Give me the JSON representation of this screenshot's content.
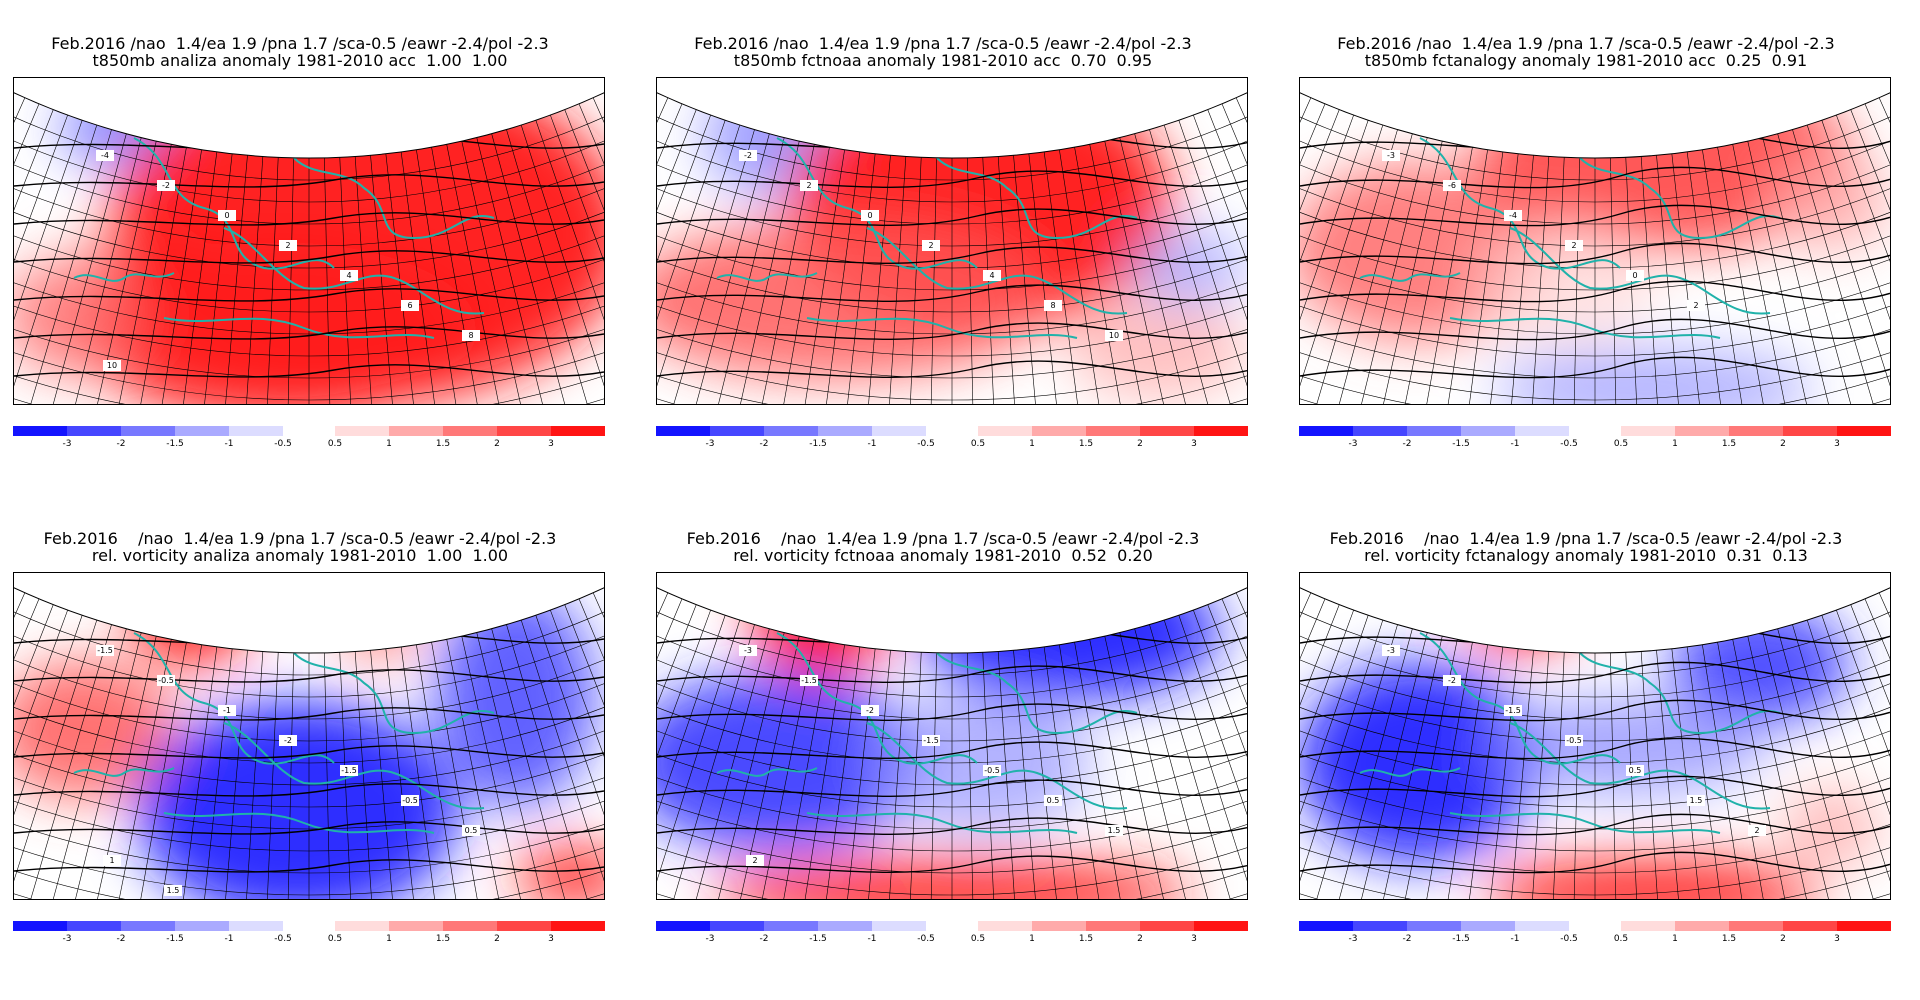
{
  "panels": [
    {
      "line1": "Feb.2016 /nao  1.4/ea 1.9 /pna 1.7 /sca-0.5 /eawr -2.4/pol -2.3",
      "line2": "t850mb analiza anomaly 1981-2010 acc  1.00  1.00",
      "pattern": "warm",
      "contour_labels": [
        "-4",
        "-2",
        "0",
        "2",
        "4",
        "6",
        "8",
        "10"
      ]
    },
    {
      "line1": "Feb.2016 /nao  1.4/ea 1.9 /pna 1.7 /sca-0.5 /eawr -2.4/pol -2.3",
      "line2": "t850mb fctnoaa anomaly 1981-2010 acc  0.70  0.95",
      "pattern": "warm2",
      "contour_labels": [
        "-2",
        "2",
        "0",
        "2",
        "4",
        "8",
        "10"
      ]
    },
    {
      "line1": "Feb.2016 /nao  1.4/ea 1.9 /pna 1.7 /sca-0.5 /eawr -2.4/pol -2.3",
      "line2": "t850mb fctanalogy anomaly 1981-2010 acc  0.25  0.91",
      "pattern": "mixed",
      "contour_labels": [
        "-3",
        "-6",
        "-4",
        "2",
        "0",
        "2"
      ]
    },
    {
      "line1": "Feb.2016    /nao  1.4/ea 1.9 /pna 1.7 /sca-0.5 /eawr -2.4/pol -2.3",
      "line2": "rel. vorticity analiza anomaly 1981-2010  1.00  1.00",
      "pattern": "vort1",
      "contour_labels": [
        "-1.5",
        "-0.5",
        "-1",
        "-2",
        "-1.5",
        "-0.5",
        "0.5",
        "1",
        "1.5"
      ]
    },
    {
      "line1": "Feb.2016    /nao  1.4/ea 1.9 /pna 1.7 /sca-0.5 /eawr -2.4/pol -2.3",
      "line2": "rel. vorticity fctnoaa anomaly 1981-2010  0.52  0.20",
      "pattern": "vort2",
      "contour_labels": [
        "-3",
        "-1.5",
        "-2",
        "-1.5",
        "-0.5",
        "0.5",
        "1.5",
        "2"
      ]
    },
    {
      "line1": "Feb.2016    /nao  1.4/ea 1.9 /pna 1.7 /sca-0.5 /eawr -2.4/pol -2.3",
      "line2": "rel. vorticity fctanalogy anomaly 1981-2010  0.31  0.13",
      "pattern": "vort3",
      "contour_labels": [
        "-3",
        "-2",
        "-1.5",
        "-0.5",
        "0.5",
        "1.5",
        "2"
      ]
    }
  ],
  "colorbar": {
    "negative_labels": [
      "-3",
      "-2",
      "-1.5",
      "-1",
      "-0.5"
    ],
    "positive_labels": [
      "0.5",
      "1",
      "1.5",
      "2",
      "3"
    ],
    "negative_colors": [
      "#1414ff",
      "#4646ff",
      "#7878ff",
      "#aaaaff",
      "#dcdcff"
    ],
    "positive_colors": [
      "#ffdcdc",
      "#ffaaaa",
      "#ff7878",
      "#ff4646",
      "#ff1414"
    ]
  }
}
